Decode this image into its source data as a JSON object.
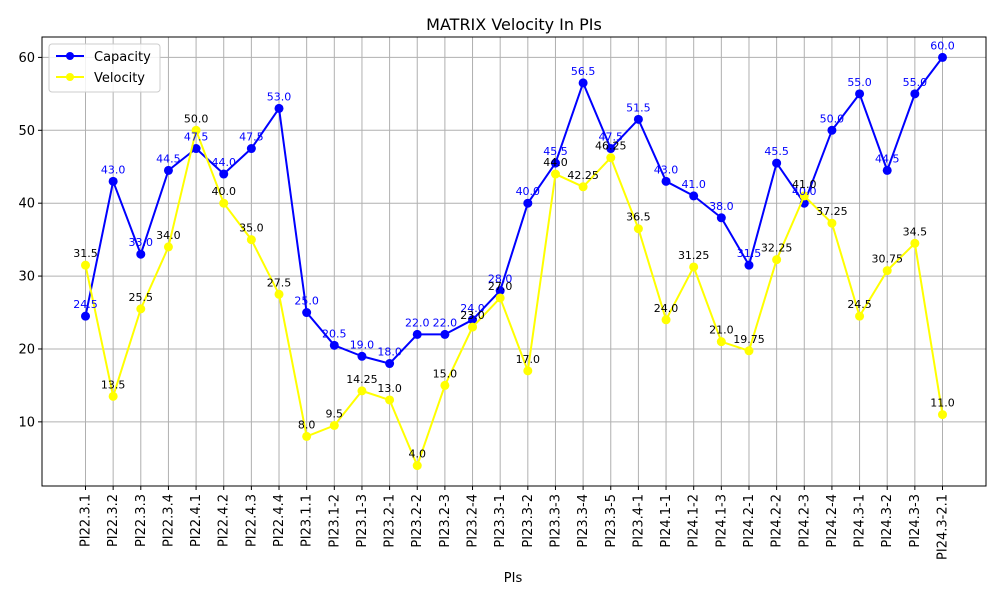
{
  "chart_data": {
    "type": "line",
    "title": "MATRIX Velocity In PIs",
    "xlabel": "PIs",
    "ylabel": "",
    "ylim": [
      1.2,
      62.8
    ],
    "yticks": [
      10,
      20,
      30,
      40,
      50,
      60
    ],
    "grid": true,
    "legend": "upper-left",
    "categories": [
      "PI22.3.1",
      "PI22.3.2",
      "PI22.3.3",
      "PI22.3.4",
      "PI22.4.1",
      "PI22.4.2",
      "PI22.4.3",
      "PI22.4.4",
      "PI23.1.1",
      "PI23.1-2",
      "PI23.1-3",
      "PI23.2-1",
      "PI23.2-2",
      "PI23.2-3",
      "PI23.2-4",
      "PI23.3-1",
      "PI23.3-2",
      "PI23.3-3",
      "PI23.3-4",
      "PI23.3-5",
      "PI23.4-1",
      "PI24.1-1",
      "PI24.1-2",
      "PI24.1-3",
      "PI24.2-1",
      "PI24.2-2",
      "PI24.2-3",
      "PI24.2-4",
      "PI24.3-1",
      "PI24.3-2",
      "PI24.3-3",
      "PI24.3-2.1"
    ],
    "series": [
      {
        "name": "Capacity",
        "color": "#0000ff",
        "values": [
          24.5,
          43.0,
          33.0,
          44.5,
          47.5,
          44.0,
          47.5,
          53.0,
          25.0,
          20.5,
          19.0,
          18.0,
          22.0,
          22.0,
          24.0,
          28.0,
          40.0,
          45.5,
          56.5,
          47.5,
          51.5,
          43.0,
          41.0,
          38.0,
          31.5,
          45.5,
          40.0,
          50.0,
          55.0,
          44.5,
          55.0,
          60.0
        ],
        "labels": [
          "24.5",
          "43.0",
          "33.0",
          "44.5",
          "47.5",
          "44.0",
          "47.5",
          "53.0",
          "25.0",
          "20.5",
          "19.0",
          "18.0",
          "22.0",
          "22.0",
          "24.0",
          "28.0",
          "40.0",
          "45.5",
          "56.5",
          "47.5",
          "51.5",
          "43.0",
          "41.0",
          "38.0",
          "31.5",
          "45.5",
          "40.0",
          "50.0",
          "55.0",
          "44.5",
          "55.0",
          "60.0"
        ]
      },
      {
        "name": "Velocity",
        "color": "#ffff00",
        "values": [
          31.5,
          13.5,
          25.5,
          34.0,
          50.0,
          40.0,
          35.0,
          27.5,
          8.0,
          9.5,
          14.25,
          13.0,
          4.0,
          15.0,
          23.0,
          27.0,
          17.0,
          44.0,
          42.25,
          46.25,
          36.5,
          24.0,
          31.25,
          21.0,
          19.75,
          32.25,
          41.0,
          37.25,
          24.5,
          30.75,
          34.5,
          11.0
        ],
        "labels": [
          "31.5",
          "13.5",
          "25.5",
          "34.0",
          "50.0",
          "40.0",
          "35.0",
          "27.5",
          "8.0",
          "9.5",
          "14.25",
          "13.0",
          "4.0",
          "15.0",
          "23.0",
          "27.0",
          "17.0",
          "44.0",
          "42.25",
          "46.25",
          "36.5",
          "24.0",
          "31.25",
          "21.0",
          "19.75",
          "32.25",
          "41.0",
          "37.25",
          "24.5",
          "30.75",
          "34.5",
          "11.0"
        ]
      }
    ]
  }
}
